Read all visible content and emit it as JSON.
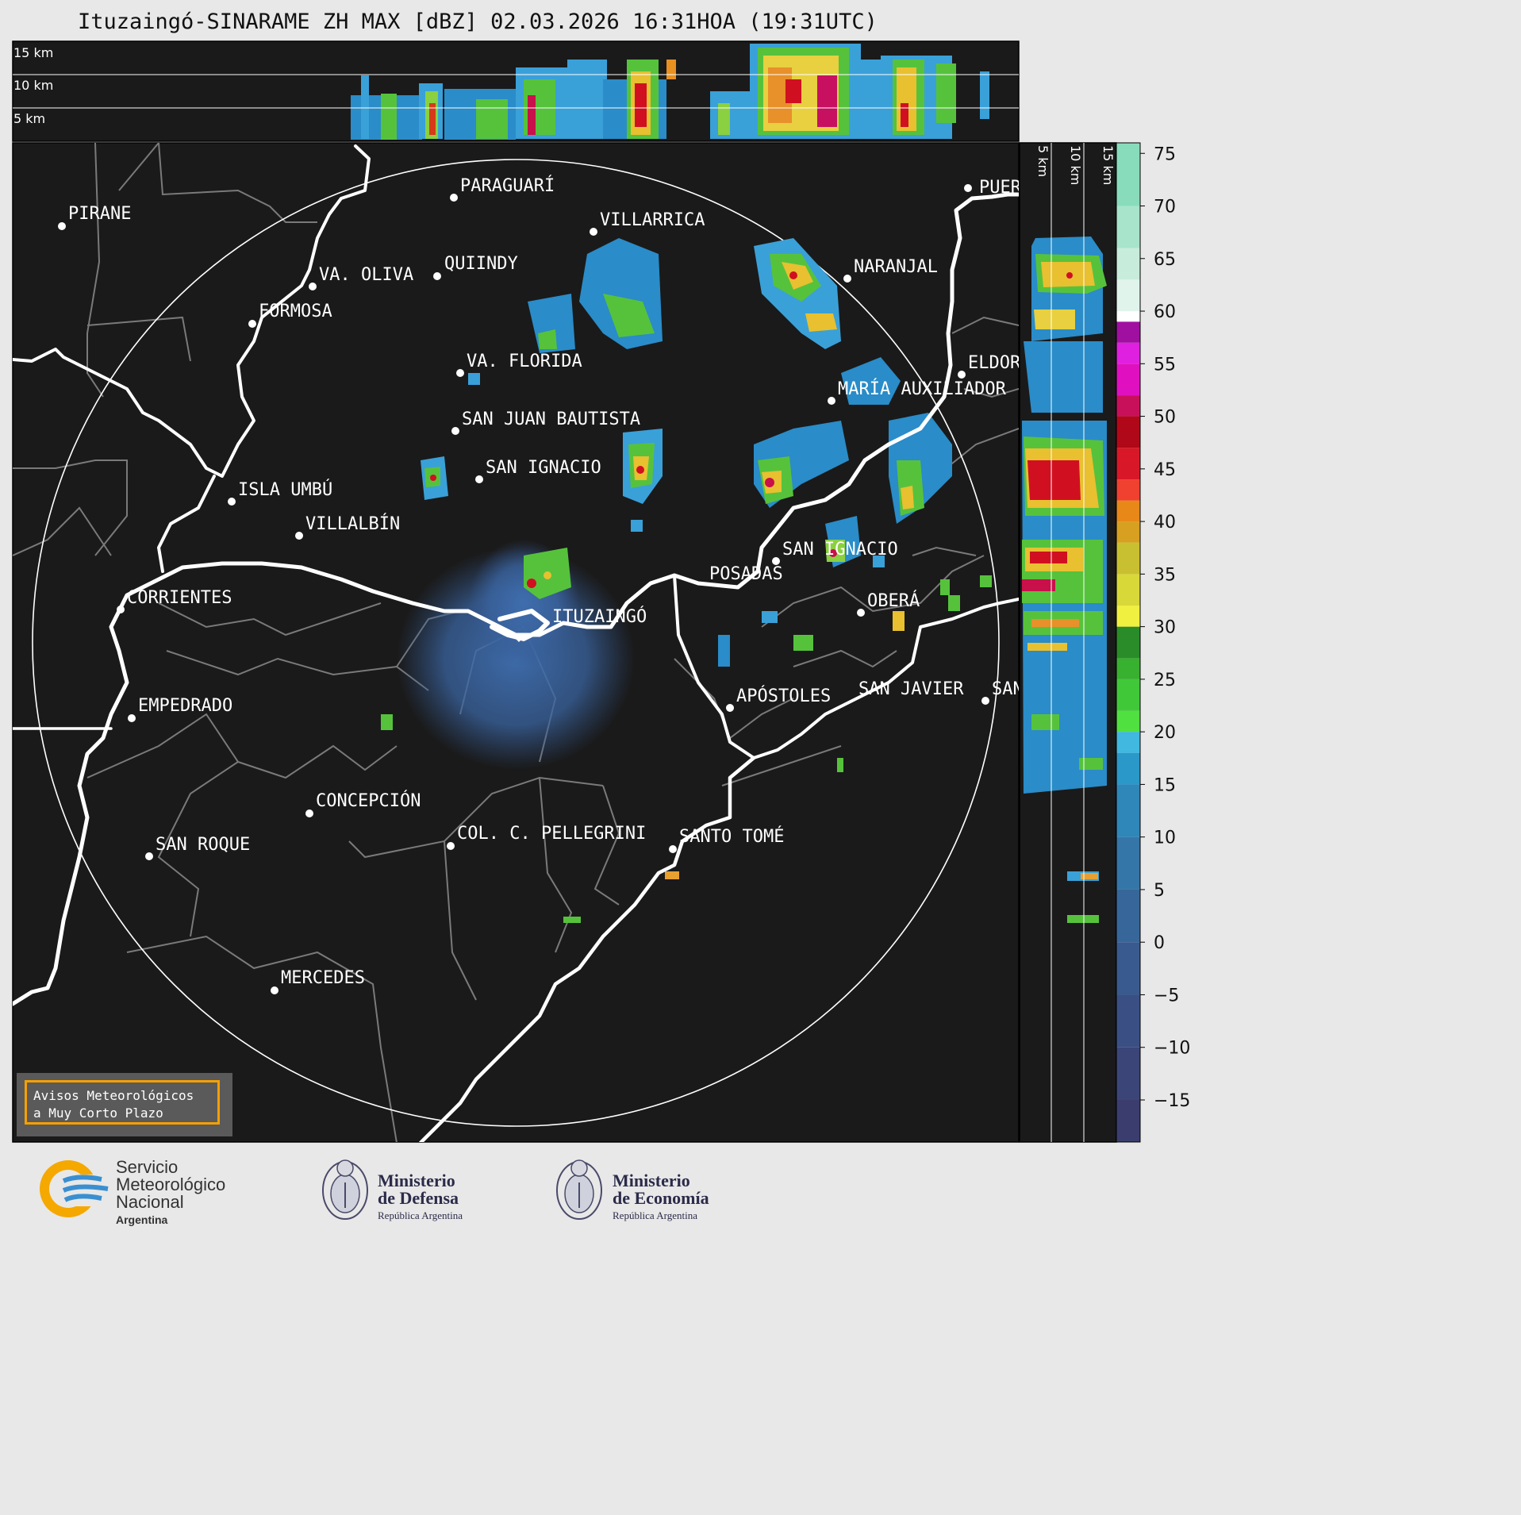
{
  "title": "Ituzaingó-SINARAME ZH MAX [dBZ] 02.03.2026 16:31HOA (19:31UTC)",
  "top_panel": {
    "height_labels": [
      "15 km",
      "10 km",
      "5 km"
    ]
  },
  "side_panel": {
    "height_labels": [
      "5 km",
      "10 km",
      "15 km"
    ]
  },
  "colorbar": {
    "ticks": [
      "75",
      "70",
      "65",
      "60",
      "55",
      "50",
      "45",
      "40",
      "35",
      "30",
      "25",
      "20",
      "15",
      "10",
      "5",
      "0",
      "−5",
      "−10",
      "−15"
    ],
    "range": [
      -19,
      76
    ]
  },
  "cities": [
    {
      "name": "PIRANE"
    },
    {
      "name": "PARAGUARÍ"
    },
    {
      "name": "VILLARRICA"
    },
    {
      "name": "VA. OLIVA"
    },
    {
      "name": "QUIINDY"
    },
    {
      "name": "FORMOSA"
    },
    {
      "name": "NARANJAL"
    },
    {
      "name": "VA. FLORIDA"
    },
    {
      "name": "ELDOR"
    },
    {
      "name": "MARÍA AUXILIADOR"
    },
    {
      "name": "SAN JUAN BAUTISTA"
    },
    {
      "name": "SAN IGNACIO"
    },
    {
      "name": "ISLA UMBÚ"
    },
    {
      "name": "VILLALBÍN"
    },
    {
      "name": "SAN IGNACIO"
    },
    {
      "name": "POSADAS"
    },
    {
      "name": "CORRIENTES"
    },
    {
      "name": "ITUZAINGÓ"
    },
    {
      "name": "OBERÁ"
    },
    {
      "name": "EMPEDRADO"
    },
    {
      "name": "APÓSTOLES"
    },
    {
      "name": "SAN JAVIER"
    },
    {
      "name": "SAN"
    },
    {
      "name": "CONCEPCIÓN"
    },
    {
      "name": "COL. C. PELLEGRINI"
    },
    {
      "name": "SANTO TOMÉ"
    },
    {
      "name": "SAN ROQUE"
    },
    {
      "name": "MERCEDES"
    },
    {
      "name": "PUER"
    }
  ],
  "warning_box": {
    "line1": "Avisos Meteorológicos",
    "line2": "a Muy Corto Plazo"
  },
  "logos": {
    "smn": {
      "line1": "Servicio",
      "line2": "Meteorológico",
      "line3": "Nacional",
      "line4": "Argentina"
    },
    "defensa": {
      "line1": "Ministerio",
      "line2": "de Defensa",
      "line3": "República Argentina"
    },
    "economia": {
      "line1": "Ministerio",
      "line2": "de Economía",
      "line3": "República Argentina"
    }
  },
  "colors": {
    "panel_bg": "#1a1a1a",
    "page_bg": "#e8e8e8",
    "accent_orange": "#f5a000",
    "smn_blue": "#3a8fd0"
  }
}
